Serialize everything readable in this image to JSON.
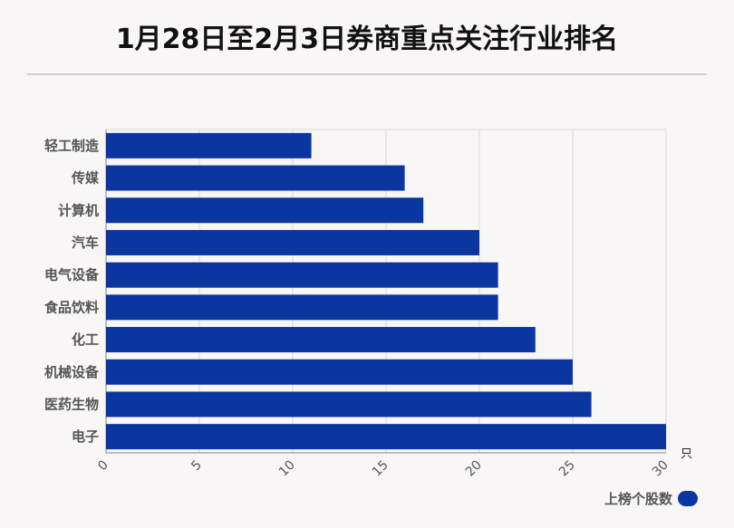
{
  "title": "1月28日至2月3日券商重点关注行业排名",
  "chart_data": {
    "type": "bar",
    "orientation": "horizontal",
    "title": "1月28日至2月3日券商重点关注行业排名",
    "categories": [
      "轻工制造",
      "传媒",
      "计算机",
      "汽车",
      "电气设备",
      "食品饮料",
      "化工",
      "机械设备",
      "医药生物",
      "电子"
    ],
    "series": [
      {
        "name": "上榜个股数",
        "values": [
          11,
          16,
          17,
          20,
          21,
          21,
          23,
          25,
          26,
          30
        ]
      }
    ],
    "xlabel": "只",
    "ylabel": "",
    "xlim": [
      0,
      30
    ],
    "xticks": [
      "0",
      "5",
      "10",
      "15",
      "20",
      "25",
      "30"
    ],
    "grid": true,
    "legend_position": "bottom-right",
    "bar_color": "#0b36a0"
  },
  "legend": {
    "label": "上榜个股数"
  }
}
